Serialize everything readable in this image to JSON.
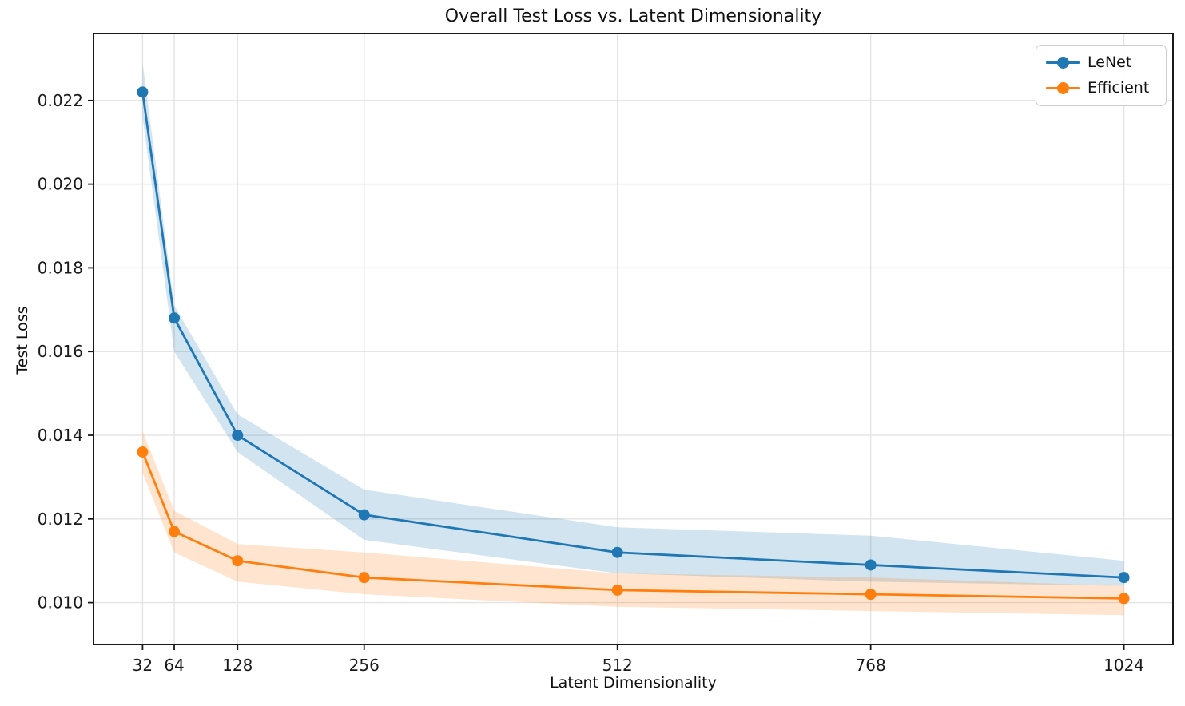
{
  "figure": {
    "background": "#ffffff",
    "grid_color": "#e3e3e3",
    "spine_color": "#1a1a1a"
  },
  "chart_data": {
    "type": "line",
    "title": "Overall Test Loss vs. Latent Dimensionality",
    "xlabel": "Latent Dimensionality",
    "ylabel": "Test Loss",
    "x": [
      32,
      64,
      128,
      256,
      512,
      768,
      1024
    ],
    "x_tick_labels": [
      "32",
      "64",
      "128",
      "256",
      "512",
      "768",
      "1024"
    ],
    "y_ticks": [
      0.01,
      0.012,
      0.014,
      0.016,
      0.018,
      0.02,
      0.022
    ],
    "y_tick_labels": [
      "0.010",
      "0.012",
      "0.014",
      "0.016",
      "0.018",
      "0.020",
      "0.022"
    ],
    "xlim": [
      -17.6,
      1073.6
    ],
    "ylim": [
      0.009,
      0.0236
    ],
    "grid": true,
    "legend_position": "upper right",
    "band_opacity": 0.2,
    "series": [
      {
        "name": "LeNet",
        "color": "#1f77b4",
        "values": [
          0.0222,
          0.0168,
          0.014,
          0.0121,
          0.0112,
          0.0109,
          0.0106
        ],
        "band_lower": [
          0.0216,
          0.016,
          0.0136,
          0.0115,
          0.0107,
          0.0105,
          0.0104
        ],
        "band_upper": [
          0.0229,
          0.0171,
          0.0145,
          0.0127,
          0.0118,
          0.0116,
          0.011
        ]
      },
      {
        "name": "Efficient",
        "color": "#ff7f0e",
        "values": [
          0.0136,
          0.0117,
          0.011,
          0.0106,
          0.0103,
          0.0102,
          0.0101
        ],
        "band_lower": [
          0.0131,
          0.0112,
          0.0105,
          0.0102,
          0.0099,
          0.0098,
          0.0097
        ],
        "band_upper": [
          0.0141,
          0.0122,
          0.0114,
          0.0112,
          0.0107,
          0.0106,
          0.0104
        ]
      }
    ]
  }
}
